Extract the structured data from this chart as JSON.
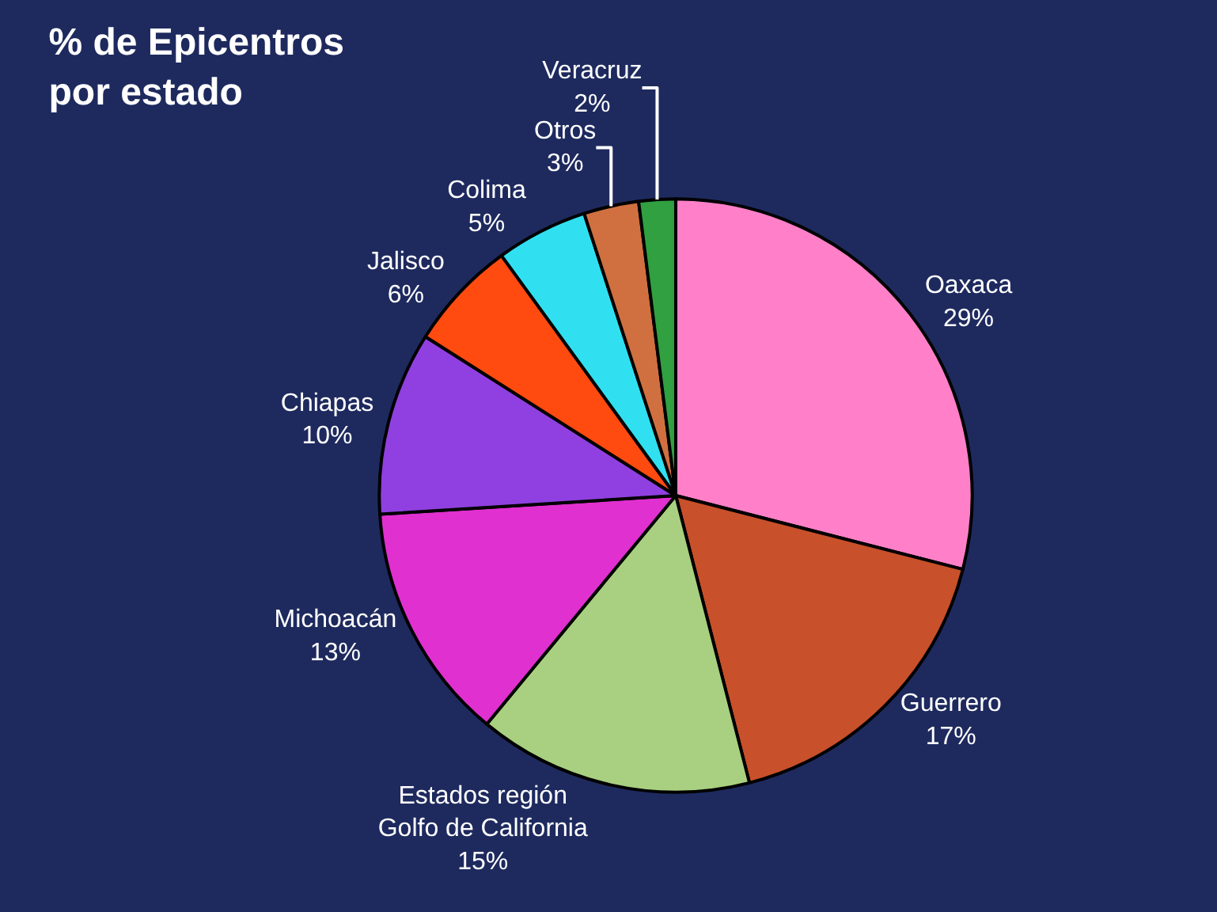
{
  "chart_data": {
    "type": "pie",
    "title": "% de Epicentros\npor estado",
    "categories": [
      "Oaxaca",
      "Guerrero",
      "Estados región\nGolfo de California",
      "Michoacán",
      "Chiapas",
      "Jalisco",
      "Colima",
      "Otros",
      "Veracruz"
    ],
    "values": [
      29,
      17,
      15,
      13,
      10,
      6,
      5,
      3,
      2
    ],
    "value_labels": [
      "29%",
      "17%",
      "15%",
      "13%",
      "10%",
      "6%",
      "5%",
      "3%",
      "2%"
    ],
    "colors": [
      "#ff80c8",
      "#c8502a",
      "#a8d080",
      "#e030d0",
      "#9040e0",
      "#ff4a10",
      "#30e0f0",
      "#d07040",
      "#30a040"
    ]
  }
}
